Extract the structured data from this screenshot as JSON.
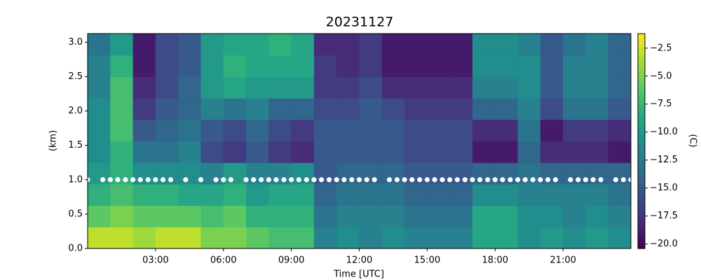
{
  "chart_data": {
    "type": "heatmap",
    "title": "20231127",
    "xlabel": "Time [UTC]",
    "ylabel": "(km)",
    "colorbar_label": "(C)",
    "colormap": "viridis",
    "x": [
      0.5,
      1.5,
      2.5,
      3.5,
      4.5,
      5.5,
      6.5,
      7.5,
      8.5,
      9.5,
      10.5,
      11.5,
      12.5,
      13.5,
      14.5,
      15.5,
      16.5,
      17.5,
      18.5,
      19.5,
      20.5,
      21.5,
      22.5,
      23.5
    ],
    "y": [
      0.156,
      0.469,
      0.781,
      1.094,
      1.406,
      1.719,
      2.031,
      2.344,
      2.656,
      2.969
    ],
    "z": [
      [
        -3,
        -3,
        -4,
        -3,
        -3,
        -5,
        -5,
        -6,
        -7,
        -7,
        -12,
        -11,
        -12,
        -11,
        -12,
        -12,
        -12,
        -9,
        -9,
        -11,
        -10,
        -11,
        -10,
        -11
      ],
      [
        -6,
        -5,
        -6,
        -6,
        -6,
        -7,
        -6,
        -8,
        -8,
        -8,
        -13,
        -12,
        -12,
        -12,
        -13,
        -13,
        -13,
        -9,
        -9,
        -11,
        -11,
        -12,
        -11,
        -12
      ],
      [
        -8,
        -7,
        -8,
        -8,
        -9,
        -9,
        -8,
        -10,
        -9,
        -9,
        -14,
        -13,
        -13,
        -13,
        -14,
        -14,
        -14,
        -11,
        -11,
        -12,
        -12,
        -12,
        -12,
        -13
      ],
      [
        -10,
        -8,
        -11,
        -11,
        -11,
        -12,
        -10,
        -12,
        -12,
        -11,
        -15,
        -14,
        -14,
        -14,
        -15,
        -15,
        -15,
        -14,
        -14,
        -13,
        -14,
        -14,
        -14,
        -14
      ],
      [
        -11,
        -8,
        -13,
        -13,
        -12,
        -16,
        -17,
        -15,
        -17,
        -18,
        -15,
        -15,
        -15,
        -15,
        -16,
        -16,
        -16,
        -19,
        -19,
        -14,
        -18,
        -18,
        -18,
        -19
      ],
      [
        -11,
        -7,
        -15,
        -14,
        -13,
        -15,
        -16,
        -14,
        -16,
        -17,
        -15,
        -15,
        -15,
        -15,
        -16,
        -16,
        -16,
        -18,
        -18,
        -13,
        -19,
        -17,
        -17,
        -18
      ],
      [
        -11,
        -7,
        -17,
        -15,
        -14,
        -12,
        -13,
        -12,
        -14,
        -14,
        -16,
        -16,
        -15,
        -16,
        -17,
        -17,
        -17,
        -14,
        -14,
        -12,
        -16,
        -13,
        -13,
        -15
      ],
      [
        -12,
        -7,
        -18,
        -16,
        -14,
        -10,
        -9,
        -10,
        -10,
        -10,
        -17,
        -17,
        -16,
        -18,
        -18,
        -18,
        -18,
        -12,
        -12,
        -11,
        -15,
        -12,
        -12,
        -14
      ],
      [
        -12,
        -8,
        -19,
        -16,
        -15,
        -10,
        -8,
        -9,
        -9,
        -9,
        -17,
        -18,
        -17,
        -19,
        -19,
        -19,
        -19,
        -11,
        -11,
        -11,
        -15,
        -12,
        -12,
        -14
      ],
      [
        -13,
        -10,
        -19,
        -16,
        -15,
        -10,
        -9,
        -9,
        -8,
        -9,
        -18,
        -18,
        -17,
        -19,
        -19,
        -19,
        -19,
        -11,
        -11,
        -12,
        -15,
        -13,
        -12,
        -14
      ]
    ],
    "xlim": [
      0,
      24
    ],
    "ylim": [
      0,
      3.125
    ],
    "clim": [
      -20.4,
      -1.2
    ],
    "xticks": [
      {
        "value": 3,
        "label": "03:00"
      },
      {
        "value": 6,
        "label": "06:00"
      },
      {
        "value": 9,
        "label": "09:00"
      },
      {
        "value": 12,
        "label": "12:00"
      },
      {
        "value": 15,
        "label": "15:00"
      },
      {
        "value": 18,
        "label": "18:00"
      },
      {
        "value": 21,
        "label": "21:00"
      }
    ],
    "yticks": [
      {
        "value": 0,
        "label": "0.0"
      },
      {
        "value": 0.5,
        "label": "0.5"
      },
      {
        "value": 1,
        "label": "1.0"
      },
      {
        "value": 1.5,
        "label": "1.5"
      },
      {
        "value": 2,
        "label": "2.0"
      },
      {
        "value": 2.5,
        "label": "2.5"
      },
      {
        "value": 3,
        "label": "3.0"
      }
    ],
    "cticks": [
      {
        "value": -2.5,
        "label": "−2.5"
      },
      {
        "value": -5,
        "label": "−5.0"
      },
      {
        "value": -7.5,
        "label": "−7.5"
      },
      {
        "value": -10,
        "label": "−10.0"
      },
      {
        "value": -12.5,
        "label": "−12.5"
      },
      {
        "value": -15,
        "label": "−15.0"
      },
      {
        "value": -17.5,
        "label": "−17.5"
      },
      {
        "value": -20,
        "label": "−20.0"
      }
    ],
    "markers": {
      "color": "#ffffff",
      "x": [
        0,
        0.67,
        1,
        1.33,
        1.67,
        2,
        2.33,
        2.67,
        3,
        3.33,
        3.67,
        4.33,
        5,
        5.67,
        6,
        6.33,
        7,
        7.33,
        7.67,
        8,
        8.33,
        8.67,
        9,
        9.33,
        9.67,
        10,
        10.33,
        10.67,
        11,
        11.33,
        11.67,
        12,
        12.33,
        12.67,
        13.33,
        13.67,
        14,
        14.33,
        14.67,
        15,
        15.33,
        15.67,
        16,
        16.33,
        16.67,
        17,
        17.33,
        17.67,
        18,
        18.33,
        18.67,
        19,
        19.33,
        19.67,
        20,
        20.33,
        20.67,
        21.33,
        21.67,
        22,
        22.33,
        22.67,
        23.33,
        23.67,
        24
      ],
      "y": [
        1,
        1,
        1,
        1,
        1,
        1,
        1,
        1,
        1,
        1,
        1,
        1,
        1,
        1,
        1,
        1,
        1,
        1,
        1,
        1,
        1,
        1,
        1,
        1,
        1,
        1,
        1,
        1,
        1,
        1,
        1,
        1,
        1,
        1,
        1,
        1,
        1,
        1,
        1,
        1,
        1,
        1,
        1,
        1,
        1,
        1,
        1,
        1,
        1,
        1,
        1,
        1,
        1,
        1,
        1,
        1,
        1,
        1,
        1,
        1,
        1,
        1,
        1,
        1,
        1
      ]
    }
  }
}
